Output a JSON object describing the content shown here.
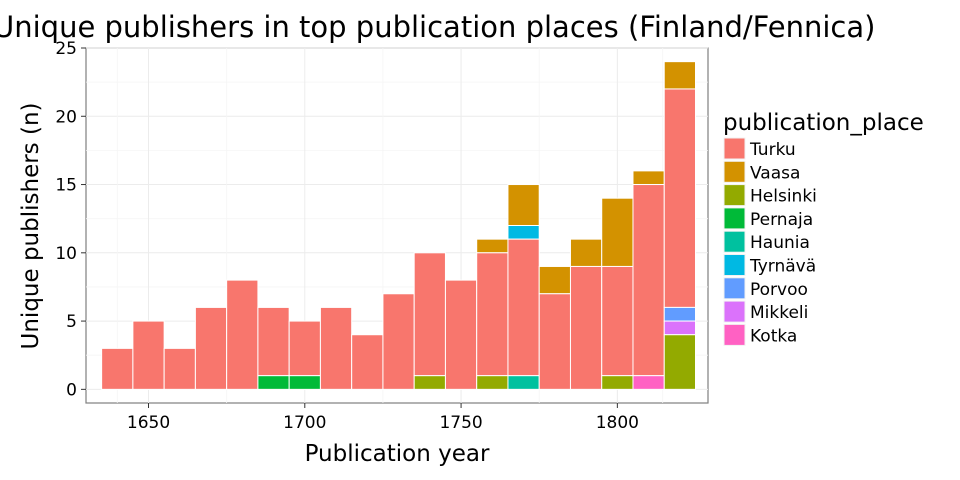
{
  "chart_data": {
    "type": "bar",
    "stacked": true,
    "title": "Unique publishers in top publication places (Finland/Fennica)",
    "xlabel": "Publication year",
    "ylabel": "Unique publishers (n)",
    "xlim": [
      1630,
      1829
    ],
    "ylim": [
      -1,
      25
    ],
    "xticks": [
      1650,
      1700,
      1750,
      1800
    ],
    "yticks": [
      0,
      5,
      10,
      15,
      20,
      25
    ],
    "bin_width": 10,
    "grid": true,
    "legend_position": "right",
    "legend_title": "publication_place",
    "series": [
      {
        "name": "Turku",
        "color": "#F8766D"
      },
      {
        "name": "Vaasa",
        "color": "#D39200"
      },
      {
        "name": "Helsinki",
        "color": "#93AA00"
      },
      {
        "name": "Pernaja",
        "color": "#00BA38"
      },
      {
        "name": "Haunia",
        "color": "#00C19F"
      },
      {
        "name": "Tyrnävä",
        "color": "#00B9E3"
      },
      {
        "name": "Porvoo",
        "color": "#619CFF"
      },
      {
        "name": "Mikkeli",
        "color": "#DB72FB"
      },
      {
        "name": "Kotka",
        "color": "#FF61C3"
      }
    ],
    "bars": [
      {
        "x": 1640,
        "segments": [
          {
            "place": "Turku",
            "from": 0,
            "to": 3
          }
        ]
      },
      {
        "x": 1650,
        "segments": [
          {
            "place": "Turku",
            "from": 0,
            "to": 5
          }
        ]
      },
      {
        "x": 1660,
        "segments": [
          {
            "place": "Turku",
            "from": 0,
            "to": 3
          }
        ]
      },
      {
        "x": 1670,
        "segments": [
          {
            "place": "Turku",
            "from": 0,
            "to": 6
          }
        ]
      },
      {
        "x": 1680,
        "segments": [
          {
            "place": "Turku",
            "from": 0,
            "to": 8
          }
        ]
      },
      {
        "x": 1690,
        "segments": [
          {
            "place": "Turku",
            "from": 1,
            "to": 6
          },
          {
            "place": "Pernaja",
            "from": 0,
            "to": 1
          }
        ]
      },
      {
        "x": 1700,
        "segments": [
          {
            "place": "Turku",
            "from": 1,
            "to": 5
          },
          {
            "place": "Pernaja",
            "from": 0,
            "to": 1
          }
        ]
      },
      {
        "x": 1710,
        "segments": [
          {
            "place": "Turku",
            "from": 0,
            "to": 6
          }
        ]
      },
      {
        "x": 1720,
        "segments": [
          {
            "place": "Turku",
            "from": 0,
            "to": 4
          }
        ]
      },
      {
        "x": 1730,
        "segments": [
          {
            "place": "Turku",
            "from": 0,
            "to": 7
          }
        ]
      },
      {
        "x": 1740,
        "segments": [
          {
            "place": "Turku",
            "from": 1,
            "to": 10
          },
          {
            "place": "Helsinki",
            "from": 0,
            "to": 1
          }
        ]
      },
      {
        "x": 1750,
        "segments": [
          {
            "place": "Turku",
            "from": 0,
            "to": 8
          }
        ]
      },
      {
        "x": 1760,
        "segments": [
          {
            "place": "Vaasa",
            "from": 10,
            "to": 11
          },
          {
            "place": "Turku",
            "from": 1,
            "to": 10
          },
          {
            "place": "Helsinki",
            "from": 0,
            "to": 1
          }
        ]
      },
      {
        "x": 1770,
        "segments": [
          {
            "place": "Vaasa",
            "from": 12,
            "to": 15
          },
          {
            "place": "Tyrnävä",
            "from": 11,
            "to": 12
          },
          {
            "place": "Turku",
            "from": 1,
            "to": 11
          },
          {
            "place": "Haunia",
            "from": 0,
            "to": 1
          }
        ]
      },
      {
        "x": 1780,
        "segments": [
          {
            "place": "Vaasa",
            "from": 7,
            "to": 9
          },
          {
            "place": "Turku",
            "from": 0,
            "to": 7
          }
        ]
      },
      {
        "x": 1790,
        "segments": [
          {
            "place": "Vaasa",
            "from": 9,
            "to": 11
          },
          {
            "place": "Turku",
            "from": 0,
            "to": 9
          }
        ]
      },
      {
        "x": 1800,
        "segments": [
          {
            "place": "Vaasa",
            "from": 9,
            "to": 14
          },
          {
            "place": "Turku",
            "from": 1,
            "to": 9
          },
          {
            "place": "Helsinki",
            "from": 0,
            "to": 1
          }
        ]
      },
      {
        "x": 1810,
        "segments": [
          {
            "place": "Vaasa",
            "from": 15,
            "to": 16
          },
          {
            "place": "Turku",
            "from": 1,
            "to": 15
          },
          {
            "place": "Kotka",
            "from": 0,
            "to": 1
          }
        ]
      },
      {
        "x": 1820,
        "segments": [
          {
            "place": "Vaasa",
            "from": 22,
            "to": 24
          },
          {
            "place": "Turku",
            "from": 6,
            "to": 22
          },
          {
            "place": "Porvoo",
            "from": 5,
            "to": 6
          },
          {
            "place": "Mikkeli",
            "from": 4,
            "to": 5
          },
          {
            "place": "Helsinki",
            "from": 0,
            "to": 4
          }
        ]
      }
    ]
  }
}
